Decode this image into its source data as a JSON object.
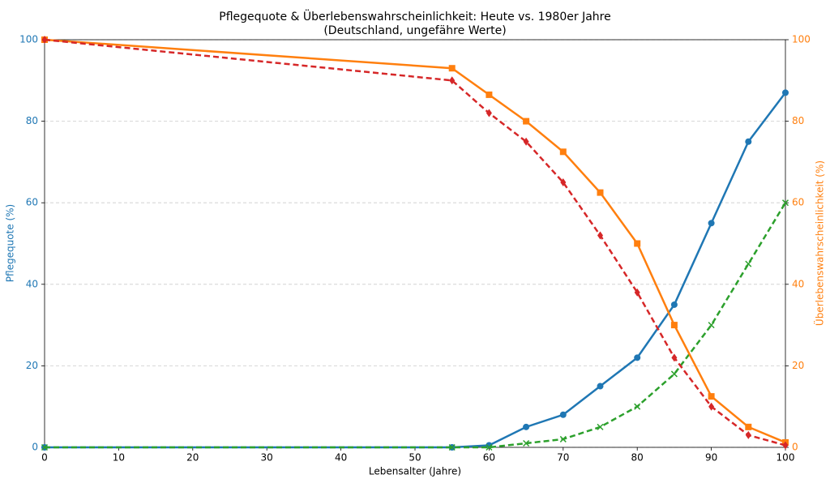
{
  "chart_data": {
    "type": "line",
    "title": [
      "Pflegequote & Überlebenswahrscheinlichkeit: Heute vs. 1980er Jahre",
      "(Deutschland, ungefähre Werte)"
    ],
    "xlabel": "Lebensalter (Jahre)",
    "ylabel": "Pflegequote (%)",
    "y2label": "Überlebenswahrscheinlichkeit (%)",
    "ylabel_color": "#1f77b4",
    "y2label_color": "#ff7f0e",
    "x": [
      0,
      55,
      60,
      65,
      70,
      75,
      80,
      85,
      90,
      95,
      100
    ],
    "series": [
      {
        "color": "#1f77b4",
        "marker": "circle",
        "dashed": false,
        "axis": "y",
        "values": [
          0,
          0,
          0.5,
          5,
          8,
          15,
          22,
          35,
          55,
          75,
          87
        ]
      },
      {
        "color": "#2ca02c",
        "marker": "x",
        "dashed": true,
        "axis": "y",
        "values": [
          0,
          0,
          0,
          1,
          2,
          5,
          10,
          18,
          30,
          45,
          60
        ]
      },
      {
        "color": "#ff7f0e",
        "marker": "square",
        "dashed": false,
        "axis": "y2",
        "values": [
          100,
          93,
          86.5,
          80,
          72.5,
          62.5,
          50,
          30,
          12.5,
          5,
          1.2
        ]
      },
      {
        "color": "#d62728",
        "marker": "diamond",
        "dashed": true,
        "axis": "y2",
        "values": [
          100,
          90,
          82,
          75,
          65,
          52,
          38,
          22,
          10,
          3,
          0.5
        ]
      }
    ],
    "xlim": [
      0,
      100
    ],
    "xticks": [
      0,
      10,
      20,
      30,
      40,
      50,
      60,
      70,
      80,
      90,
      100
    ],
    "ylim": [
      0,
      100
    ],
    "yticks": [
      0,
      20,
      40,
      60,
      80,
      100
    ],
    "y2lim": [
      0,
      100
    ],
    "y2ticks": [
      0,
      20,
      40,
      60,
      80,
      100
    ],
    "grid": true
  }
}
